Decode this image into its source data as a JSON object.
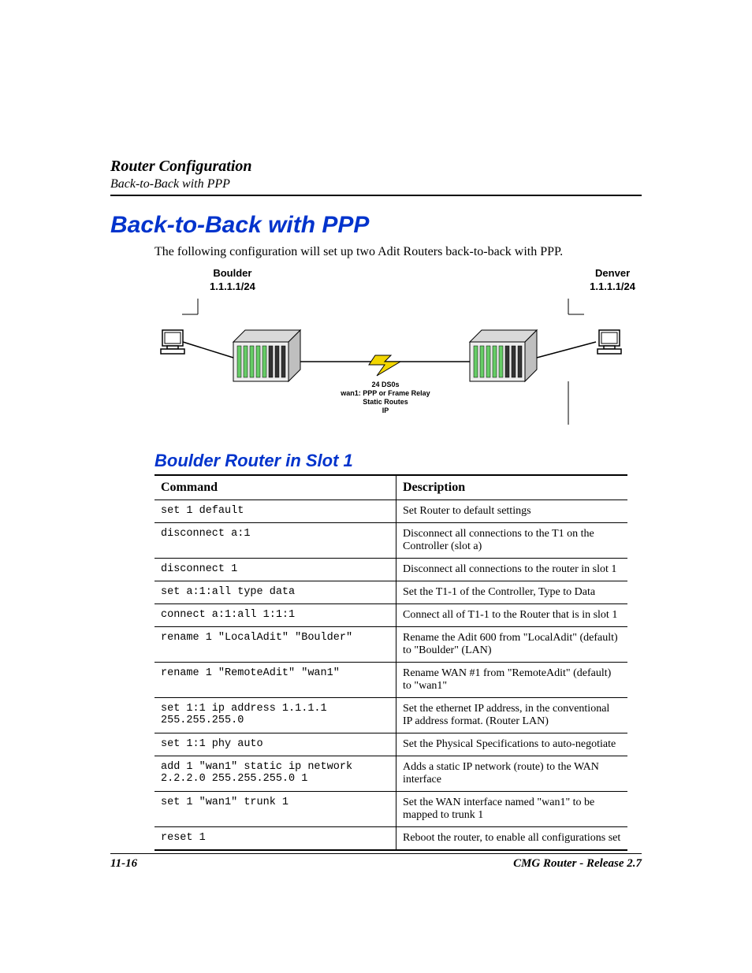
{
  "header": {
    "title": "Router Configuration",
    "subtitle": "Back-to-Back with PPP"
  },
  "main_title": "Back-to-Back with PPP",
  "intro": "The following configuration will set up two Adit Routers back-to-back with PPP.",
  "diagram": {
    "left_router": {
      "name": "Boulder",
      "ip": "1.1.1.1/24"
    },
    "right_router": {
      "name": "Denver",
      "ip": "1.1.1.1/24"
    },
    "link_labels": [
      "24 DS0s",
      "wan1: PPP or Frame Relay",
      "Static Routes",
      "IP"
    ],
    "colors": {
      "router_face": "#eeeeee",
      "router_side": "#bfbfbf",
      "router_top": "#d9d9d9",
      "slot_green": "#66cc66",
      "slot_dark": "#333333",
      "bolt_yellow": "#f2d600",
      "bolt_stroke": "#000000",
      "line": "#000000",
      "pc_body": "#ffffff",
      "pc_stroke": "#000000"
    },
    "link_font_size": 9
  },
  "section_title": "Boulder Router in Slot 1",
  "table": {
    "columns": [
      "Command",
      "Description"
    ],
    "rows": [
      [
        "set 1 default",
        "Set Router to default settings"
      ],
      [
        "disconnect a:1",
        "Disconnect all connections to the T1 on the Controller (slot a)"
      ],
      [
        "disconnect 1",
        "Disconnect all connections to the router in slot 1"
      ],
      [
        "set a:1:all type data",
        "Set the T1-1 of the Controller, Type to Data"
      ],
      [
        "connect a:1:all 1:1:1",
        "Connect all of T1-1 to the Router that is in slot 1"
      ],
      [
        "rename 1 \"LocalAdit\" \"Boulder\"",
        "Rename the Adit 600 from \"LocalAdit\" (default) to \"Boulder\" (LAN)"
      ],
      [
        "rename 1 \"RemoteAdit\" \"wan1\"",
        "Rename WAN #1 from \"RemoteAdit\" (default) to \"wan1\""
      ],
      [
        "set 1:1 ip address 1.1.1.1 255.255.255.0",
        "Set the ethernet IP address, in the conventional IP address format. (Router LAN)"
      ],
      [
        "set 1:1 phy auto",
        "Set the Physical Specifications to auto-negotiate"
      ],
      [
        "add 1 \"wan1\" static ip network 2.2.2.0 255.255.255.0 1",
        "Adds a static IP network (route) to the WAN interface"
      ],
      [
        "set 1 \"wan1\" trunk 1",
        "Set the WAN interface named \"wan1\" to be mapped to trunk 1"
      ],
      [
        "reset 1",
        "Reboot the router, to enable all configurations set"
      ]
    ]
  },
  "footer": {
    "page": "11-16",
    "doc": "CMG Router - Release 2.7"
  },
  "colors": {
    "heading_blue": "#0033cc",
    "text": "#000000",
    "rule": "#000000"
  }
}
